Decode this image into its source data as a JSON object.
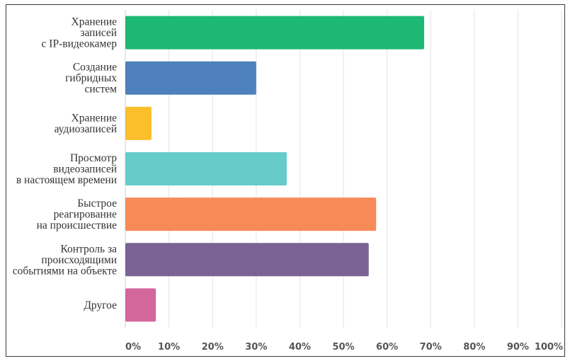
{
  "chart_data": {
    "type": "bar",
    "orientation": "horizontal",
    "title": "",
    "xlabel": "",
    "ylabel": "",
    "categories": [
      [
        "Хранение",
        "записей",
        "с IP-видеокамер"
      ],
      [
        "Создание",
        "гибридных",
        "систем"
      ],
      [
        "Хранение",
        "аудиозаписей"
      ],
      [
        "Просмотр",
        "видеозаписей",
        "в настоящем времени"
      ],
      [
        "Быстрое",
        "реагирование",
        "на происшествие"
      ],
      [
        "Контроль за",
        "происходящими",
        "событиями на объекте"
      ],
      [
        "Другое"
      ]
    ],
    "values": [
      68.5,
      30,
      6,
      37,
      57.5,
      55.8,
      7
    ],
    "colors": [
      "#1db874",
      "#4d80bd",
      "#fbbf2c",
      "#66cbcb",
      "#f78b58",
      "#7a6394",
      "#d3669a"
    ],
    "xlim": [
      0,
      100
    ],
    "xticks": [
      "0%",
      "10%",
      "20%",
      "30%",
      "40%",
      "50%",
      "60%",
      "70%",
      "80%",
      "90%",
      "100%"
    ],
    "grid": true
  }
}
